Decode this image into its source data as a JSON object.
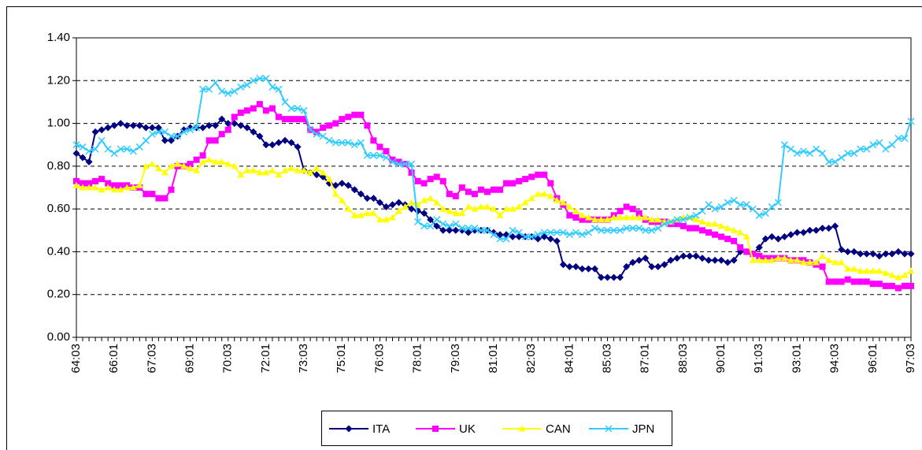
{
  "chart_data": {
    "type": "line",
    "categories": [
      "64:03",
      null,
      null,
      null,
      null,
      null,
      "66:01",
      null,
      null,
      null,
      null,
      null,
      "67:03",
      null,
      null,
      null,
      null,
      null,
      "69:01",
      null,
      null,
      null,
      null,
      null,
      "70:03",
      null,
      null,
      null,
      null,
      null,
      "72:01",
      null,
      null,
      null,
      null,
      null,
      "73:03",
      null,
      null,
      null,
      null,
      null,
      "75:01",
      null,
      null,
      null,
      null,
      null,
      "76:03",
      null,
      null,
      null,
      null,
      null,
      "78:01",
      null,
      null,
      null,
      null,
      null,
      "79:03",
      null,
      null,
      null,
      null,
      null,
      "81:01",
      null,
      null,
      null,
      null,
      null,
      "82:03",
      null,
      null,
      null,
      null,
      null,
      "84:01",
      null,
      null,
      null,
      null,
      null,
      "85:03",
      null,
      null,
      null,
      null,
      null,
      "87:01",
      null,
      null,
      null,
      null,
      null,
      "88:03",
      null,
      null,
      null,
      null,
      null,
      "90:01",
      null,
      null,
      null,
      null,
      null,
      "91:03",
      null,
      null,
      null,
      null,
      null,
      "93:01",
      null,
      null,
      null,
      null,
      null,
      "94:03",
      null,
      null,
      null,
      null,
      null,
      "96:01",
      null,
      null,
      null,
      null,
      null,
      "97:03"
    ],
    "series": [
      {
        "name": "ITA",
        "color": "#000080",
        "marker": "diamond",
        "values": [
          0.86,
          0.84,
          0.82,
          0.96,
          0.97,
          0.98,
          0.99,
          1.0,
          0.99,
          0.99,
          0.99,
          0.98,
          0.98,
          0.98,
          0.92,
          0.92,
          0.94,
          0.97,
          0.98,
          0.98,
          0.98,
          0.99,
          0.99,
          1.02,
          1.0,
          1.0,
          0.99,
          0.98,
          0.96,
          0.94,
          0.9,
          0.9,
          0.91,
          0.92,
          0.91,
          0.89,
          0.78,
          0.77,
          0.76,
          0.75,
          0.72,
          0.71,
          0.72,
          0.71,
          0.69,
          0.67,
          0.65,
          0.65,
          0.63,
          0.61,
          0.62,
          0.63,
          0.62,
          0.6,
          0.59,
          0.58,
          0.55,
          0.52,
          0.5,
          0.5,
          0.5,
          0.5,
          0.49,
          0.5,
          0.5,
          0.5,
          0.49,
          0.48,
          0.48,
          0.47,
          0.47,
          0.47,
          0.47,
          0.46,
          0.47,
          0.46,
          0.45,
          0.34,
          0.33,
          0.33,
          0.32,
          0.32,
          0.32,
          0.28,
          0.28,
          0.28,
          0.28,
          0.33,
          0.35,
          0.36,
          0.37,
          0.33,
          0.33,
          0.34,
          0.36,
          0.37,
          0.38,
          0.38,
          0.38,
          0.37,
          0.36,
          0.36,
          0.36,
          0.35,
          0.36,
          0.4,
          0.4,
          0.39,
          0.42,
          0.46,
          0.47,
          0.46,
          0.47,
          0.48,
          0.49,
          0.49,
          0.5,
          0.5,
          0.51,
          0.51,
          0.52,
          0.41,
          0.4,
          0.4,
          0.39,
          0.39,
          0.39,
          0.38,
          0.39,
          0.39,
          0.4,
          0.39,
          0.39
        ]
      },
      {
        "name": "UK",
        "color": "#ff00ff",
        "marker": "square",
        "values": [
          0.73,
          0.72,
          0.72,
          0.73,
          0.74,
          0.72,
          0.71,
          0.71,
          0.71,
          0.7,
          0.7,
          0.67,
          0.67,
          0.65,
          0.65,
          0.69,
          0.8,
          0.8,
          0.81,
          0.83,
          0.85,
          0.92,
          0.92,
          0.95,
          0.97,
          1.03,
          1.05,
          1.06,
          1.07,
          1.09,
          1.06,
          1.07,
          1.03,
          1.02,
          1.02,
          1.02,
          1.02,
          0.97,
          0.96,
          0.98,
          0.99,
          1.0,
          1.02,
          1.03,
          1.04,
          1.04,
          0.99,
          0.92,
          0.89,
          0.87,
          0.83,
          0.82,
          0.81,
          0.77,
          0.73,
          0.72,
          0.74,
          0.75,
          0.73,
          0.67,
          0.66,
          0.7,
          0.68,
          0.67,
          0.69,
          0.68,
          0.69,
          0.69,
          0.72,
          0.72,
          0.73,
          0.74,
          0.75,
          0.76,
          0.76,
          0.72,
          0.65,
          0.62,
          0.57,
          0.56,
          0.55,
          0.55,
          0.55,
          0.55,
          0.55,
          0.57,
          0.59,
          0.61,
          0.6,
          0.58,
          0.55,
          0.54,
          0.54,
          0.54,
          0.53,
          0.53,
          0.52,
          0.51,
          0.51,
          0.5,
          0.49,
          0.48,
          0.47,
          0.46,
          0.45,
          0.42,
          0.4,
          0.39,
          0.38,
          0.37,
          0.37,
          0.37,
          0.37,
          0.36,
          0.36,
          0.36,
          0.35,
          0.34,
          0.33,
          0.26,
          0.26,
          0.26,
          0.27,
          0.26,
          0.26,
          0.26,
          0.25,
          0.25,
          0.24,
          0.24,
          0.23,
          0.24,
          0.24
        ]
      },
      {
        "name": "CAN",
        "color": "#ffff00",
        "marker": "triangle",
        "values": [
          0.71,
          0.7,
          0.7,
          0.7,
          0.69,
          0.7,
          0.69,
          0.69,
          0.7,
          0.7,
          0.71,
          0.8,
          0.81,
          0.79,
          0.77,
          0.8,
          0.81,
          0.8,
          0.79,
          0.78,
          0.82,
          0.83,
          0.82,
          0.82,
          0.81,
          0.8,
          0.76,
          0.78,
          0.78,
          0.77,
          0.77,
          0.78,
          0.76,
          0.78,
          0.79,
          0.78,
          0.78,
          0.77,
          0.79,
          0.77,
          0.74,
          0.67,
          0.64,
          0.6,
          0.57,
          0.57,
          0.58,
          0.58,
          0.55,
          0.55,
          0.56,
          0.59,
          0.61,
          0.63,
          0.62,
          0.64,
          0.65,
          0.63,
          0.6,
          0.59,
          0.58,
          0.58,
          0.61,
          0.6,
          0.61,
          0.61,
          0.6,
          0.57,
          0.6,
          0.6,
          0.61,
          0.63,
          0.65,
          0.67,
          0.67,
          0.66,
          0.64,
          0.63,
          0.61,
          0.59,
          0.57,
          0.56,
          0.55,
          0.55,
          0.55,
          0.56,
          0.56,
          0.56,
          0.56,
          0.56,
          0.56,
          0.55,
          0.55,
          0.54,
          0.54,
          0.55,
          0.56,
          0.56,
          0.55,
          0.54,
          0.53,
          0.53,
          0.52,
          0.51,
          0.5,
          0.49,
          0.47,
          0.36,
          0.36,
          0.36,
          0.36,
          0.37,
          0.37,
          0.36,
          0.36,
          0.35,
          0.35,
          0.35,
          0.38,
          0.36,
          0.35,
          0.35,
          0.32,
          0.32,
          0.31,
          0.31,
          0.31,
          0.31,
          0.3,
          0.29,
          0.28,
          0.29,
          0.31
        ]
      },
      {
        "name": "JPN",
        "color": "#33ccff",
        "marker": "x",
        "values": [
          0.9,
          0.89,
          0.87,
          0.88,
          0.92,
          0.88,
          0.86,
          0.88,
          0.88,
          0.87,
          0.89,
          0.92,
          0.95,
          0.96,
          0.96,
          0.94,
          0.94,
          0.96,
          0.97,
          0.98,
          1.16,
          1.16,
          1.19,
          1.15,
          1.14,
          1.15,
          1.17,
          1.18,
          1.2,
          1.21,
          1.21,
          1.17,
          1.16,
          1.1,
          1.07,
          1.07,
          1.06,
          0.97,
          0.95,
          0.94,
          0.92,
          0.91,
          0.91,
          0.91,
          0.9,
          0.91,
          0.85,
          0.85,
          0.85,
          0.84,
          0.82,
          0.81,
          0.81,
          0.81,
          0.54,
          0.52,
          0.52,
          0.55,
          0.53,
          0.52,
          0.53,
          0.51,
          0.51,
          0.51,
          0.5,
          0.5,
          0.48,
          0.46,
          0.46,
          0.5,
          0.49,
          0.47,
          0.47,
          0.48,
          0.49,
          0.49,
          0.49,
          0.49,
          0.48,
          0.49,
          0.48,
          0.49,
          0.51,
          0.5,
          0.5,
          0.5,
          0.5,
          0.51,
          0.51,
          0.51,
          0.5,
          0.5,
          0.51,
          0.53,
          0.54,
          0.55,
          0.55,
          0.56,
          0.57,
          0.59,
          0.62,
          0.6,
          0.61,
          0.63,
          0.64,
          0.62,
          0.62,
          0.6,
          0.57,
          0.58,
          0.61,
          0.63,
          0.9,
          0.88,
          0.86,
          0.87,
          0.86,
          0.88,
          0.86,
          0.82,
          0.82,
          0.84,
          0.86,
          0.86,
          0.88,
          0.88,
          0.9,
          0.91,
          0.88,
          0.9,
          0.93,
          0.93,
          1.01
        ]
      }
    ],
    "ylim": [
      0,
      1.4
    ],
    "yticks": [
      {
        "value": 0,
        "label": "0.00"
      },
      {
        "value": 0.2,
        "label": "0.20"
      },
      {
        "value": 0.4,
        "label": "0.40"
      },
      {
        "value": 0.6,
        "label": "0.60"
      },
      {
        "value": 0.8,
        "label": "0.80"
      },
      {
        "value": 1.0,
        "label": "1.00"
      },
      {
        "value": 1.2,
        "label": "1.20"
      },
      {
        "value": 1.4,
        "label": "1.40"
      }
    ],
    "grid": true,
    "legend": "bottom"
  }
}
